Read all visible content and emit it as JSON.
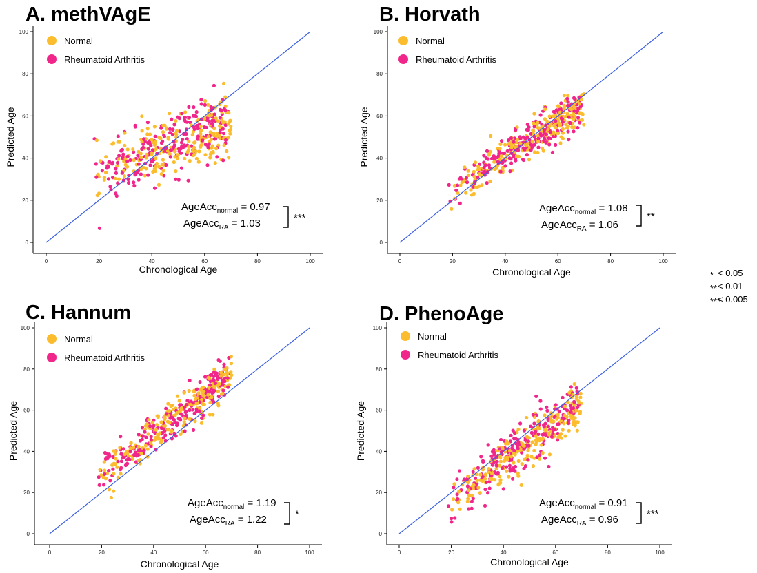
{
  "colors": {
    "normal": "#fbbc2e",
    "ra": "#f0268a",
    "identity_line": "#3b5fe0",
    "axis": "#000000"
  },
  "significance_legend": [
    {
      "stars": "*",
      "label": "< 0.05"
    },
    {
      "stars": "**",
      "label": "< 0.01"
    },
    {
      "stars": "***",
      "label": "< 0.005"
    }
  ],
  "chart_data": [
    {
      "type": "scatter",
      "title": "A. methVAgE",
      "xlabel": "Chronological Age",
      "ylabel": "Predicted Age",
      "xlim": [
        0,
        100
      ],
      "ylim": [
        0,
        100
      ],
      "xticks": [
        "0",
        "20",
        "40",
        "60",
        "80",
        "100"
      ],
      "yticks": [
        "0",
        "20",
        "40",
        "60",
        "80",
        "100"
      ],
      "legend": {
        "placement": "top-left",
        "entries": [
          "Normal",
          "Rheumatoid Arthritis"
        ]
      },
      "identity_line": true,
      "series": [
        {
          "name": "Normal",
          "x_range": [
            18,
            70
          ],
          "slope": 0.45,
          "intercept": 25,
          "spread": 7
        },
        {
          "name": "Rheumatoid Arthritis",
          "x_range": [
            18,
            69
          ],
          "slope": 0.55,
          "intercept": 20,
          "spread": 7
        }
      ],
      "annotation": {
        "normal_value": "0.97",
        "ra_value": "1.03",
        "significance": "***"
      }
    },
    {
      "type": "scatter",
      "title": "B. Horvath",
      "xlabel": "Chronological Age",
      "ylabel": "Predicted Age",
      "xlim": [
        0,
        100
      ],
      "ylim": [
        0,
        100
      ],
      "xticks": [
        "0",
        "20",
        "40",
        "60",
        "80",
        "100"
      ],
      "yticks": [
        "0",
        "20",
        "40",
        "60",
        "80",
        "100"
      ],
      "legend": {
        "placement": "top-left",
        "entries": [
          "Normal",
          "Rheumatoid Arthritis"
        ]
      },
      "identity_line": true,
      "series": [
        {
          "name": "Normal",
          "x_range": [
            19,
            70
          ],
          "slope": 0.82,
          "intercept": 8,
          "spread": 4.5
        },
        {
          "name": "Rheumatoid Arthritis",
          "x_range": [
            18,
            69
          ],
          "slope": 0.82,
          "intercept": 8,
          "spread": 4.5
        }
      ],
      "annotation": {
        "normal_value": "1.08",
        "ra_value": "1.06",
        "significance": "**"
      }
    },
    {
      "type": "scatter",
      "title": "C. Hannum",
      "xlabel": "Chronological Age",
      "ylabel": "Predicted Age",
      "xlim": [
        0,
        100
      ],
      "ylim": [
        0,
        100
      ],
      "xticks": [
        "0",
        "20",
        "40",
        "60",
        "80",
        "100"
      ],
      "yticks": [
        "0",
        "20",
        "40",
        "60",
        "80",
        "100"
      ],
      "legend": {
        "placement": "top-left",
        "entries": [
          "Normal",
          "Rheumatoid Arthritis"
        ]
      },
      "identity_line": true,
      "series": [
        {
          "name": "Normal",
          "x_range": [
            19,
            70
          ],
          "slope": 0.95,
          "intercept": 10,
          "spread": 4.5
        },
        {
          "name": "Rheumatoid Arthritis",
          "x_range": [
            18,
            69
          ],
          "slope": 0.95,
          "intercept": 11,
          "spread": 4.5
        }
      ],
      "annotation": {
        "normal_value": "1.19",
        "ra_value": "1.22",
        "significance": "*"
      }
    },
    {
      "type": "scatter",
      "title": "D. PhenoAge",
      "xlabel": "Chronological Age",
      "ylabel": "Predicted Age",
      "xlim": [
        0,
        100
      ],
      "ylim": [
        0,
        100
      ],
      "xticks": [
        "0",
        "20",
        "40",
        "60",
        "80",
        "100"
      ],
      "yticks": [
        "0",
        "20",
        "40",
        "60",
        "80",
        "100"
      ],
      "legend": {
        "placement": "top-left",
        "entries": [
          "Normal",
          "Rheumatoid Arthritis"
        ]
      },
      "identity_line": true,
      "series": [
        {
          "name": "Normal",
          "x_range": [
            19,
            70
          ],
          "slope": 0.92,
          "intercept": -3,
          "spread": 5.5
        },
        {
          "name": "Rheumatoid Arthritis",
          "x_range": [
            18,
            69
          ],
          "slope": 0.95,
          "intercept": -2,
          "spread": 6
        }
      ],
      "annotation": {
        "normal_value": "0.91",
        "ra_value": "0.96",
        "significance": "***"
      }
    }
  ]
}
